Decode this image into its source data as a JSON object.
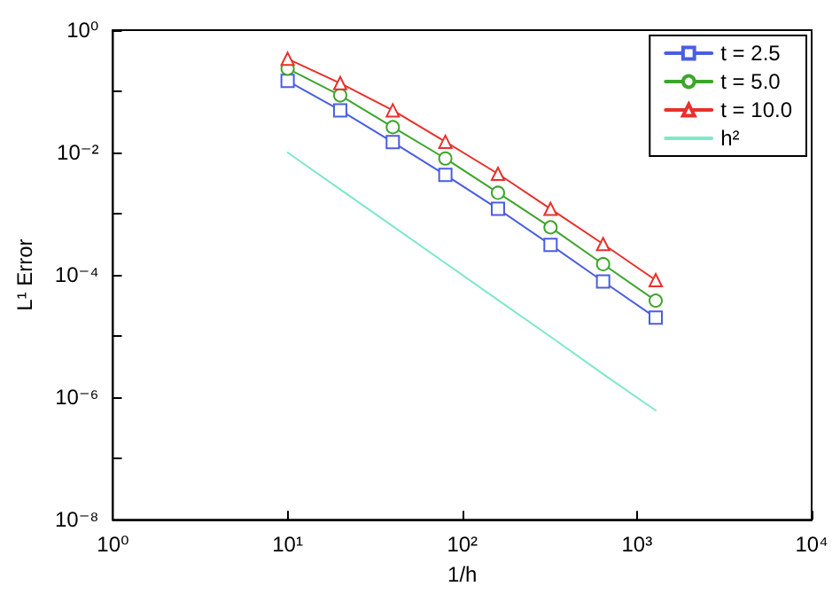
{
  "chart_data": {
    "type": "line",
    "xlabel": "1/h",
    "ylabel": "L¹ Error",
    "log": "xy",
    "grid": false,
    "legend": "top right",
    "x": [
      10,
      20,
      40,
      80,
      160,
      320,
      640,
      1280
    ],
    "xlim": [
      1,
      10000
    ],
    "xticks": [
      {
        "value": 1,
        "label": "10⁰"
      },
      {
        "value": 10,
        "label": "10¹"
      },
      {
        "value": 100,
        "label": "10²"
      },
      {
        "value": 1000,
        "label": "10³"
      },
      {
        "value": 10000,
        "label": "10⁴"
      }
    ],
    "ylim": [
      1e-08,
      1
    ],
    "yticks": [
      {
        "value": 1e-08,
        "label": "10⁻⁸"
      },
      {
        "value": 1e-07,
        "label": null
      },
      {
        "value": 1e-06,
        "label": "10⁻⁶"
      },
      {
        "value": 1e-05,
        "label": null
      },
      {
        "value": 0.0001,
        "label": "10⁻⁴"
      },
      {
        "value": 0.001,
        "label": null
      },
      {
        "value": 0.01,
        "label": "10⁻²"
      },
      {
        "value": 0.1,
        "label": null
      },
      {
        "value": 1,
        "label": "10⁰"
      }
    ],
    "series": [
      {
        "name": "t = 2.5",
        "color": "#4a5ee0",
        "marker": "square",
        "values": [
          0.148,
          0.049,
          0.0148,
          0.0043,
          0.0012,
          0.00031,
          7.8e-05,
          2e-05
        ]
      },
      {
        "name": "t = 5.0",
        "color": "#3da52c",
        "marker": "circle",
        "values": [
          0.235,
          0.086,
          0.026,
          0.008,
          0.0022,
          0.0006,
          0.00015,
          3.8e-05
        ]
      },
      {
        "name": "t = 10.0",
        "color": "#e8302a",
        "marker": "triangle",
        "values": [
          0.34,
          0.136,
          0.049,
          0.015,
          0.0045,
          0.0012,
          0.00032,
          8.2e-05
        ]
      },
      {
        "name": "h²",
        "color": "#7fe8c8",
        "marker": "none",
        "values": [
          0.01,
          0.0025,
          0.000625,
          0.000156,
          3.9e-05,
          9.8e-06,
          2.4e-06,
          6.1e-07
        ]
      }
    ]
  }
}
